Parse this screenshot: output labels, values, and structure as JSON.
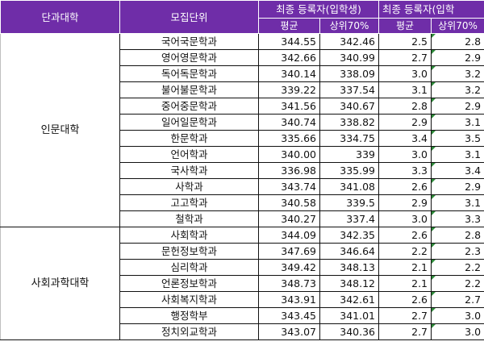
{
  "header": {
    "college": "단과대학",
    "department": "모집단위",
    "group1": "최종 등록자(입학생)",
    "group2": "최종 등록자(입학",
    "avg1": "평균",
    "top1": "상위70%",
    "avg2": "평균",
    "top2": "상위70%"
  },
  "colors": {
    "header_bg": "#6f2da8",
    "header_text": "#ffffff",
    "grid": "#111111",
    "cell_marker": "#2e8b3a"
  },
  "groups": [
    {
      "college": "인문대학",
      "rows": [
        {
          "dept": "국어국문학과",
          "avg1": "344.55",
          "top1": "342.46",
          "avg2": "2.5",
          "top2": "2.8"
        },
        {
          "dept": "영어영문학과",
          "avg1": "342.66",
          "top1": "340.99",
          "avg2": "2.7",
          "top2": "2.9"
        },
        {
          "dept": "독어독문학과",
          "avg1": "340.14",
          "top1": "338.09",
          "avg2": "3.0",
          "top2": "3.2"
        },
        {
          "dept": "불어불문학과",
          "avg1": "339.22",
          "top1": "337.54",
          "avg2": "3.1",
          "top2": "3.2"
        },
        {
          "dept": "중어중문학과",
          "avg1": "341.56",
          "top1": "340.67",
          "avg2": "2.8",
          "top2": "2.9"
        },
        {
          "dept": "일어일문학과",
          "avg1": "340.74",
          "top1": "338.82",
          "avg2": "2.9",
          "top2": "3.1"
        },
        {
          "dept": "한문학과",
          "avg1": "335.66",
          "top1": "334.75",
          "avg2": "3.4",
          "top2": "3.5"
        },
        {
          "dept": "언어학과",
          "avg1": "340.00",
          "top1": "339",
          "avg2": "3.0",
          "top2": "3.1"
        },
        {
          "dept": "국사학과",
          "avg1": "336.98",
          "top1": "335.99",
          "avg2": "3.3",
          "top2": "3.4"
        },
        {
          "dept": "사학과",
          "avg1": "343.74",
          "top1": "341.08",
          "avg2": "2.6",
          "top2": "2.9"
        },
        {
          "dept": "고고학과",
          "avg1": "340.58",
          "top1": "339.5",
          "avg2": "2.9",
          "top2": "3.1"
        },
        {
          "dept": "철학과",
          "avg1": "340.27",
          "top1": "337.4",
          "avg2": "3.0",
          "top2": "3.3"
        }
      ]
    },
    {
      "college": "사회과학대학",
      "rows": [
        {
          "dept": "사회학과",
          "avg1": "344.09",
          "top1": "342.35",
          "avg2": "2.6",
          "top2": "2.8"
        },
        {
          "dept": "문헌정보학과",
          "avg1": "347.69",
          "top1": "346.64",
          "avg2": "2.2",
          "top2": "2.3"
        },
        {
          "dept": "심리학과",
          "avg1": "349.42",
          "top1": "348.13",
          "avg2": "2.1",
          "top2": "2.2"
        },
        {
          "dept": "언론정보학과",
          "avg1": "348.73",
          "top1": "348.12",
          "avg2": "2.1",
          "top2": "2.2"
        },
        {
          "dept": "사회복지학과",
          "avg1": "343.91",
          "top1": "342.61",
          "avg2": "2.6",
          "top2": "2.7"
        },
        {
          "dept": "행정학부",
          "avg1": "343.45",
          "top1": "341.01",
          "avg2": "2.7",
          "top2": "3.0"
        },
        {
          "dept": "정치외교학과",
          "avg1": "343.07",
          "top1": "340.36",
          "avg2": "2.7",
          "top2": "3.0"
        }
      ]
    }
  ]
}
